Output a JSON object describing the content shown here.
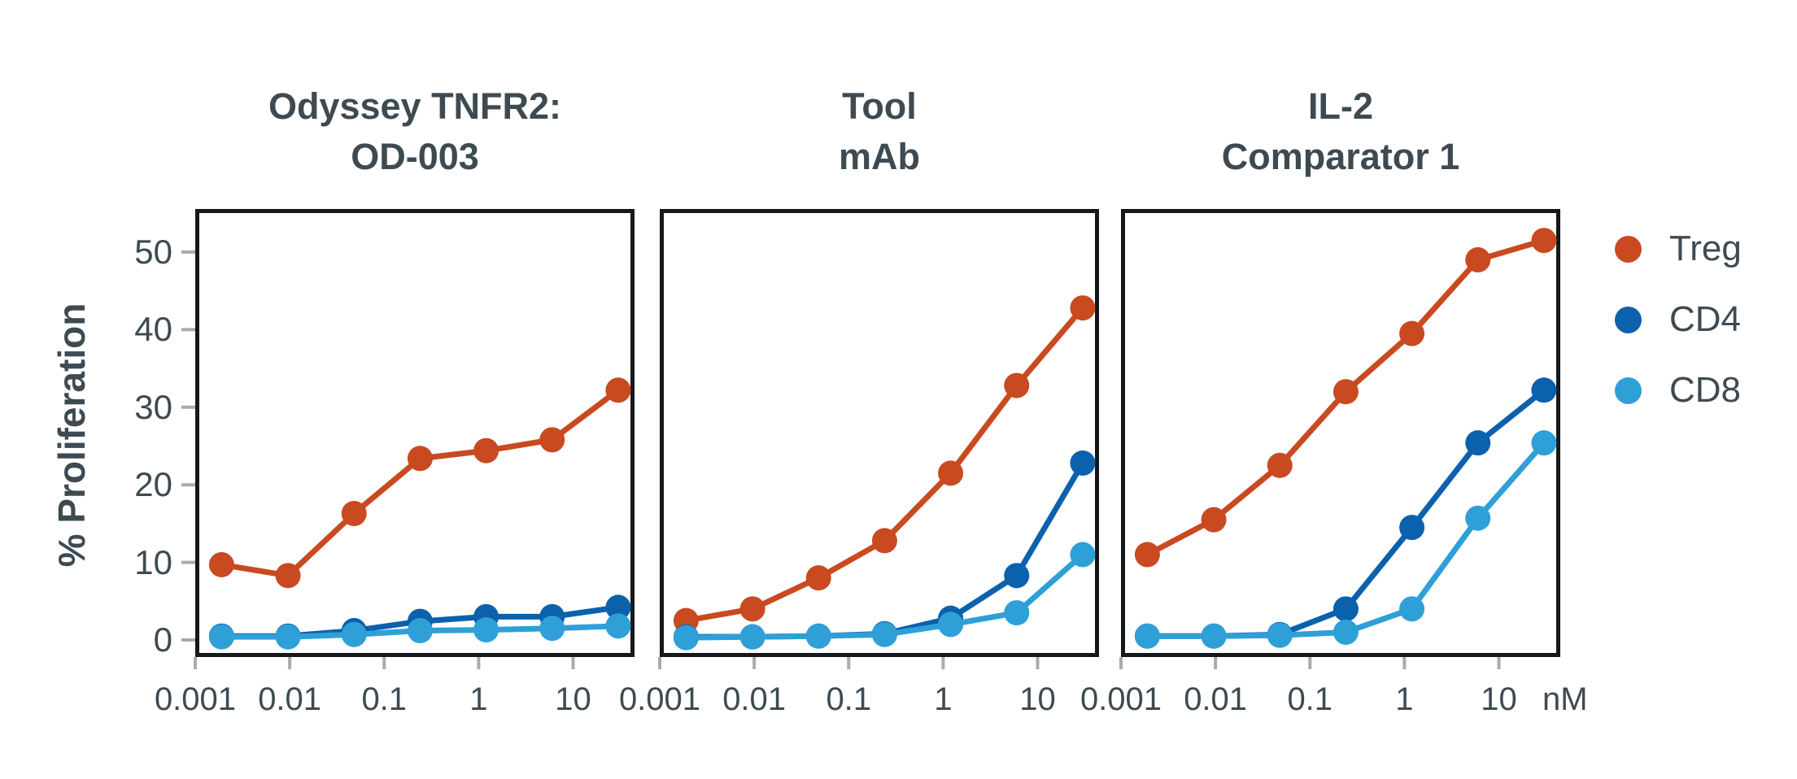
{
  "y_axis": {
    "label": "% Proliferation",
    "ticks": [
      0,
      10,
      20,
      30,
      40,
      50
    ]
  },
  "x_axis": {
    "tick_labels": [
      "0.001",
      "0.01",
      "0.1",
      "1",
      "10"
    ],
    "unit": "nM"
  },
  "panels": [
    {
      "title_line1": "Odyssey TNFR2:",
      "title_line2": "OD-003"
    },
    {
      "title_line1": "Tool",
      "title_line2": "mAb"
    },
    {
      "title_line1": "IL-2",
      "title_line2": "Comparator 1"
    }
  ],
  "legend": [
    {
      "label": "Treg",
      "color": "#C94A21"
    },
    {
      "label": "CD4",
      "color": "#0B61AC"
    },
    {
      "label": "CD8",
      "color": "#2F9FD8"
    }
  ],
  "chart_data": [
    {
      "type": "line",
      "title": "Odyssey TNFR2: OD-003",
      "x_scale": "log",
      "x": [
        0.0019,
        0.0096,
        0.048,
        0.24,
        1.2,
        6,
        30
      ],
      "x_tick_labels": [
        "0.001",
        "0.01",
        "0.1",
        "1",
        "10"
      ],
      "x_unit": "nM",
      "xlabel": "",
      "ylabel": "% Proliferation",
      "ylim": [
        0,
        50
      ],
      "grid": false,
      "legend_position": "right-of-last-panel",
      "series": [
        {
          "name": "Treg",
          "color": "#C94A21",
          "values": [
            9.7,
            8.3,
            16.3,
            23.4,
            24.4,
            25.8,
            32.2
          ]
        },
        {
          "name": "CD4",
          "color": "#0B61AC",
          "values": [
            0.5,
            0.5,
            1.2,
            2.4,
            3.0,
            3.0,
            4.2
          ]
        },
        {
          "name": "CD8",
          "color": "#2F9FD8",
          "values": [
            0.4,
            0.4,
            0.7,
            1.2,
            1.3,
            1.5,
            1.8
          ]
        }
      ]
    },
    {
      "type": "line",
      "title": "Tool mAb",
      "x_scale": "log",
      "x": [
        0.0019,
        0.0096,
        0.048,
        0.24,
        1.2,
        6,
        30
      ],
      "x_tick_labels": [
        "0.001",
        "0.01",
        "0.1",
        "1",
        "10"
      ],
      "x_unit": "nM",
      "xlabel": "",
      "ylabel": "% Proliferation",
      "ylim": [
        0,
        50
      ],
      "grid": false,
      "series": [
        {
          "name": "Treg",
          "color": "#C94A21",
          "values": [
            2.5,
            4.0,
            8.0,
            12.8,
            21.5,
            32.8,
            42.8
          ]
        },
        {
          "name": "CD4",
          "color": "#0B61AC",
          "values": [
            0.4,
            0.4,
            0.5,
            0.8,
            2.8,
            8.3,
            22.8
          ]
        },
        {
          "name": "CD8",
          "color": "#2F9FD8",
          "values": [
            0.3,
            0.4,
            0.5,
            0.7,
            2.0,
            3.5,
            11.0
          ]
        }
      ]
    },
    {
      "type": "line",
      "title": "IL-2 Comparator 1",
      "x_scale": "log",
      "x": [
        0.0019,
        0.0096,
        0.048,
        0.24,
        1.2,
        6,
        30
      ],
      "x_tick_labels": [
        "0.001",
        "0.01",
        "0.1",
        "1",
        "10"
      ],
      "x_unit": "nM",
      "xlabel": "",
      "ylabel": "% Proliferation",
      "ylim": [
        0,
        50
      ],
      "grid": false,
      "series": [
        {
          "name": "Treg",
          "color": "#C94A21",
          "values": [
            11.0,
            15.5,
            22.5,
            32.0,
            39.5,
            49.0,
            51.5
          ]
        },
        {
          "name": "CD4",
          "color": "#0B61AC",
          "values": [
            0.5,
            0.5,
            0.7,
            4.0,
            14.5,
            25.4,
            32.2
          ]
        },
        {
          "name": "CD8",
          "color": "#2F9FD8",
          "values": [
            0.5,
            0.5,
            0.6,
            1.0,
            4.0,
            15.7,
            25.4
          ]
        }
      ]
    }
  ]
}
